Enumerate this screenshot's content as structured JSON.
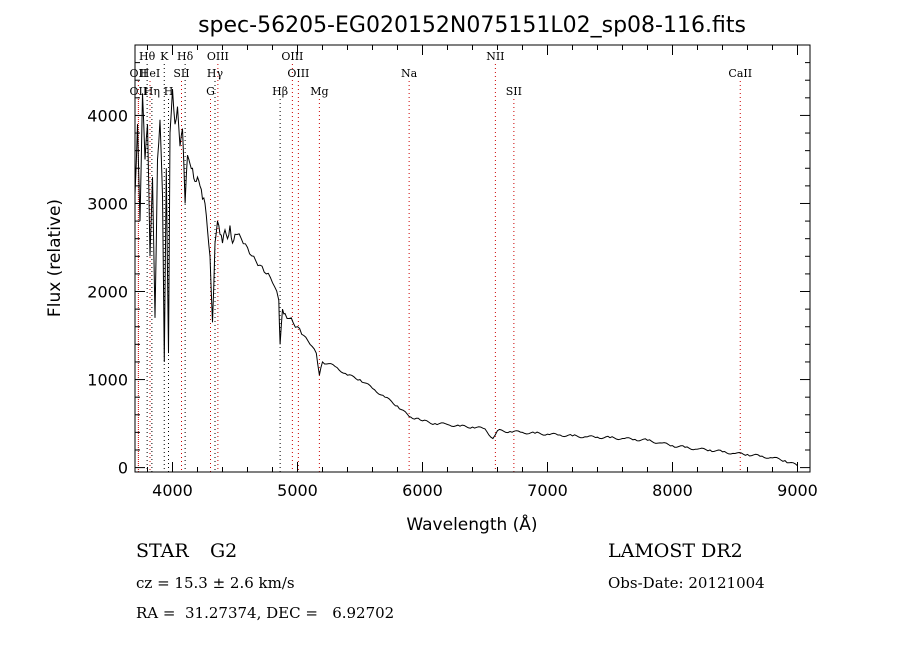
{
  "chart_data": {
    "type": "line",
    "title": "spec-56205-EG020152N075151L02_sp08-116.fits",
    "xlabel": "Wavelength (Å)",
    "ylabel": "Flux (relative)",
    "xlim": [
      3700,
      9100
    ],
    "ylim": [
      -50,
      4800
    ],
    "x_ticks": [
      4000,
      5000,
      6000,
      7000,
      8000,
      9000
    ],
    "y_ticks": [
      0,
      1000,
      2000,
      3000,
      4000
    ],
    "grid": false,
    "series": [
      {
        "points": [
          [
            3700,
            3100
          ],
          [
            3720,
            3900
          ],
          [
            3740,
            2800
          ],
          [
            3760,
            4250
          ],
          [
            3780,
            3500
          ],
          [
            3800,
            3900
          ],
          [
            3820,
            2400
          ],
          [
            3840,
            3300
          ],
          [
            3860,
            1700
          ],
          [
            3880,
            3500
          ],
          [
            3900,
            3950
          ],
          [
            3920,
            3100
          ],
          [
            3934,
            1200
          ],
          [
            3950,
            3400
          ],
          [
            3968,
            1300
          ],
          [
            3980,
            3800
          ],
          [
            4000,
            4300
          ],
          [
            4020,
            3900
          ],
          [
            4040,
            4100
          ],
          [
            4060,
            3650
          ],
          [
            4080,
            3850
          ],
          [
            4101,
            3000
          ],
          [
            4120,
            3550
          ],
          [
            4140,
            3450
          ],
          [
            4160,
            3400
          ],
          [
            4180,
            3250
          ],
          [
            4200,
            3300
          ],
          [
            4220,
            3200
          ],
          [
            4240,
            3050
          ],
          [
            4260,
            3000
          ],
          [
            4280,
            2700
          ],
          [
            4300,
            2400
          ],
          [
            4320,
            1650
          ],
          [
            4340,
            2550
          ],
          [
            4360,
            2800
          ],
          [
            4380,
            2650
          ],
          [
            4400,
            2550
          ],
          [
            4420,
            2700
          ],
          [
            4440,
            2600
          ],
          [
            4460,
            2750
          ],
          [
            4480,
            2550
          ],
          [
            4500,
            2650
          ],
          [
            4550,
            2600
          ],
          [
            4600,
            2500
          ],
          [
            4650,
            2400
          ],
          [
            4700,
            2300
          ],
          [
            4750,
            2200
          ],
          [
            4800,
            2100
          ],
          [
            4850,
            1900
          ],
          [
            4861,
            1400
          ],
          [
            4880,
            1800
          ],
          [
            4900,
            1750
          ],
          [
            4950,
            1700
          ],
          [
            5000,
            1600
          ],
          [
            5050,
            1500
          ],
          [
            5100,
            1400
          ],
          [
            5150,
            1300
          ],
          [
            5175,
            1050
          ],
          [
            5200,
            1200
          ],
          [
            5300,
            1150
          ],
          [
            5400,
            1050
          ],
          [
            5500,
            1000
          ],
          [
            5600,
            900
          ],
          [
            5700,
            800
          ],
          [
            5800,
            700
          ],
          [
            5893,
            580
          ],
          [
            5950,
            560
          ],
          [
            6000,
            530
          ],
          [
            6100,
            500
          ],
          [
            6200,
            490
          ],
          [
            6300,
            470
          ],
          [
            6400,
            460
          ],
          [
            6500,
            440
          ],
          [
            6563,
            330
          ],
          [
            6600,
            420
          ],
          [
            6700,
            410
          ],
          [
            6800,
            400
          ],
          [
            6900,
            390
          ],
          [
            7000,
            380
          ],
          [
            7100,
            370
          ],
          [
            7200,
            360
          ],
          [
            7300,
            350
          ],
          [
            7400,
            345
          ],
          [
            7500,
            340
          ],
          [
            7600,
            330
          ],
          [
            7700,
            320
          ],
          [
            7800,
            310
          ],
          [
            7900,
            280
          ],
          [
            8000,
            250
          ],
          [
            8100,
            230
          ],
          [
            8200,
            210
          ],
          [
            8300,
            200
          ],
          [
            8400,
            180
          ],
          [
            8500,
            160
          ],
          [
            8600,
            150
          ],
          [
            8700,
            130
          ],
          [
            8800,
            110
          ],
          [
            8900,
            80
          ],
          [
            9000,
            20
          ]
        ]
      }
    ],
    "annotations": [
      {
        "label": "Hθ",
        "x": 3797,
        "row": 0
      },
      {
        "label": "K",
        "x": 3934,
        "row": 0
      },
      {
        "label": "Hδ",
        "x": 4101,
        "row": 0
      },
      {
        "label": "OIII",
        "x": 4363,
        "row": 0
      },
      {
        "label": "OIII",
        "x": 4959,
        "row": 0
      },
      {
        "label": "NII",
        "x": 6583,
        "row": 0
      },
      {
        "label": "OII",
        "x": 3727,
        "row": 1
      },
      {
        "label": "HeI",
        "x": 3820,
        "row": 1
      },
      {
        "label": "SII",
        "x": 4072,
        "row": 1
      },
      {
        "label": "Hγ",
        "x": 4340,
        "row": 1
      },
      {
        "label": "OIII",
        "x": 5007,
        "row": 1
      },
      {
        "label": "Na",
        "x": 5893,
        "row": 1
      },
      {
        "label": "CaII",
        "x": 8542,
        "row": 1
      },
      {
        "label": "OII",
        "x": 3727,
        "row": 2
      },
      {
        "label": "Hη",
        "x": 3835,
        "row": 2
      },
      {
        "label": "H",
        "x": 3968,
        "row": 2
      },
      {
        "label": "G",
        "x": 4304,
        "row": 2
      },
      {
        "label": "Hβ",
        "x": 4861,
        "row": 2
      },
      {
        "label": "Mg",
        "x": 5175,
        "row": 2
      },
      {
        "label": "SII",
        "x": 6731,
        "row": 2
      }
    ],
    "line_colors": {
      "balmer": "#000000",
      "other": "#cc0000"
    }
  },
  "info": {
    "class": "STAR",
    "subclass": "G2",
    "survey": "LAMOST DR2",
    "cz": "cz = 15.3 ± 2.6 km/s",
    "obsdate": "Obs-Date: 20121004",
    "radec": "RA =  31.27374, DEC =   6.92702"
  }
}
